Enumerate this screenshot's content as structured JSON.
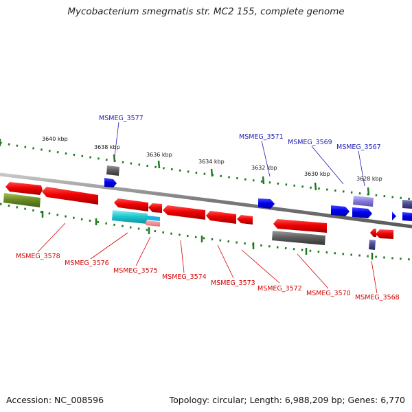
{
  "title": "Mycobacterium smegmatis str. MC2 155, complete genome",
  "footer": {
    "accession": "Accession: NC_008596",
    "summary": "Topology: circular; Length: 6,988,209 bp; Genes: 6,770"
  },
  "colors": {
    "backbone": "#8a8a8a",
    "tick": "#1f7a1f",
    "forward": "#0000e6",
    "reverse": "#e60000",
    "gray": "#5f5f5f",
    "cyan": "#20c8d0",
    "olive": "#6b8e23",
    "lavender": "#8a7fdc",
    "slate": "#4b4b8f",
    "pink": "#f08080",
    "label_top": "#1a1ab4",
    "label_bottom": "#d00000"
  },
  "scale_labels": [
    "3640 kbp",
    "3638 kbp",
    "3636 kbp",
    "3634 kbp",
    "3632 kbp",
    "3630 kbp",
    "3628 kbp"
  ],
  "genes_top": [
    "MSMEG_3577",
    "MSMEG_3571",
    "MSMEG_3569",
    "MSMEG_3567"
  ],
  "genes_bottom": [
    "MSMEG_3578",
    "MSMEG_3576",
    "MSMEG_3575",
    "MSMEG_3574",
    "MSMEG_3573",
    "MSMEG_3572",
    "MSMEG_3570",
    "MSMEG_3568"
  ]
}
